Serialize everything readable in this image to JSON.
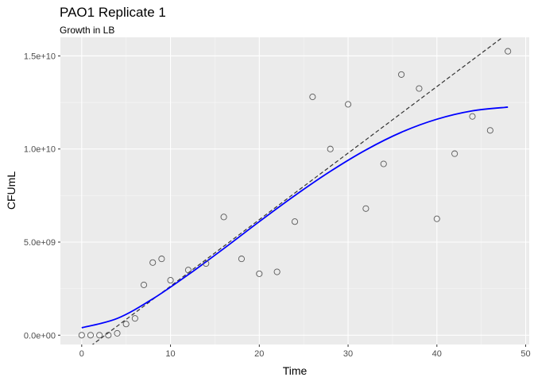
{
  "chart_data": {
    "type": "scatter",
    "title": "PAO1 Replicate 1",
    "subtitle": "Growth in LB",
    "xlabel": "Time",
    "ylabel": "CFUmL",
    "xlim": [
      -2.4,
      50.4
    ],
    "ylim": [
      -500000000,
      16000000000
    ],
    "x_ticks": [
      0,
      10,
      20,
      30,
      40,
      50
    ],
    "x_tick_labels": [
      "0",
      "10",
      "20",
      "30",
      "40",
      "50"
    ],
    "y_ticks": [
      0,
      5000000000,
      10000000000,
      15000000000
    ],
    "y_tick_labels": [
      "0.0e+00",
      "5.0e+09",
      "1.0e+10",
      "1.5e+10"
    ],
    "grid": true,
    "colors": {
      "panel_background": "#EBEBEB",
      "grid_major": "#FFFFFF",
      "points": "#595959",
      "smooth_line": "#0000FF",
      "linear_line": "#333333"
    },
    "points": {
      "x": [
        0,
        1,
        2,
        3,
        4,
        5,
        6,
        7,
        8,
        9,
        10,
        12,
        14,
        16,
        18,
        20,
        22,
        24,
        26,
        28,
        30,
        32,
        34,
        36,
        38,
        40,
        42,
        44,
        46,
        48
      ],
      "y": [
        0,
        0,
        0,
        0,
        100000000,
        600000000,
        900000000,
        2700000000,
        3900000000,
        4100000000,
        2950000000,
        3500000000,
        3850000000,
        6350000000,
        4100000000,
        3300000000,
        3400000000,
        6100000000,
        12800000000,
        10000000000,
        12400000000,
        6800000000,
        9200000000,
        14000000000,
        13250000000,
        6250000000,
        9750000000,
        11750000000,
        11000000000,
        15250000000
      ]
    },
    "smooth_line": {
      "x": [
        0,
        4,
        8,
        12,
        16,
        20,
        24,
        28,
        32,
        36,
        40,
        44,
        48
      ],
      "y": [
        400000000,
        900000000,
        1950000000,
        3250000000,
        4650000000,
        6100000000,
        7500000000,
        8800000000,
        9950000000,
        10900000000,
        11600000000,
        12050000000,
        12250000000
      ]
    },
    "linear_line": {
      "x": [
        -2.4,
        47.4
      ],
      "y": [
        -1800000000,
        16000000000
      ]
    }
  }
}
